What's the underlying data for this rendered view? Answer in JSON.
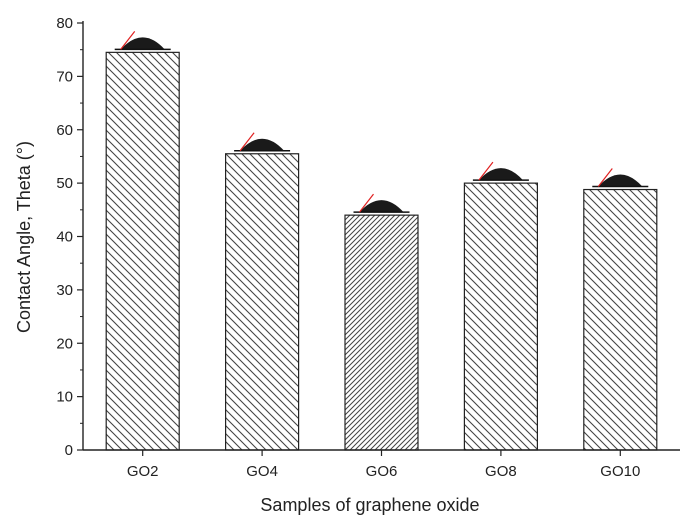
{
  "chart_data": {
    "type": "bar",
    "xlabel": "Samples of graphene oxide",
    "ylabel": "Contact Angle, Theta (°)",
    "ylim": [
      0,
      80
    ],
    "yticks": [
      0,
      10,
      20,
      30,
      40,
      50,
      60,
      70,
      80
    ],
    "categories": [
      "GO2",
      "GO4",
      "GO6",
      "GO8",
      "GO10"
    ],
    "values": [
      74.5,
      55.5,
      44,
      50,
      48.8
    ],
    "bar_fill": "hatched",
    "colors": {
      "bar_stroke": "#222222",
      "hatch": "#444444",
      "droplet": "#1a1a1a",
      "angle_line": "#e02020"
    }
  }
}
